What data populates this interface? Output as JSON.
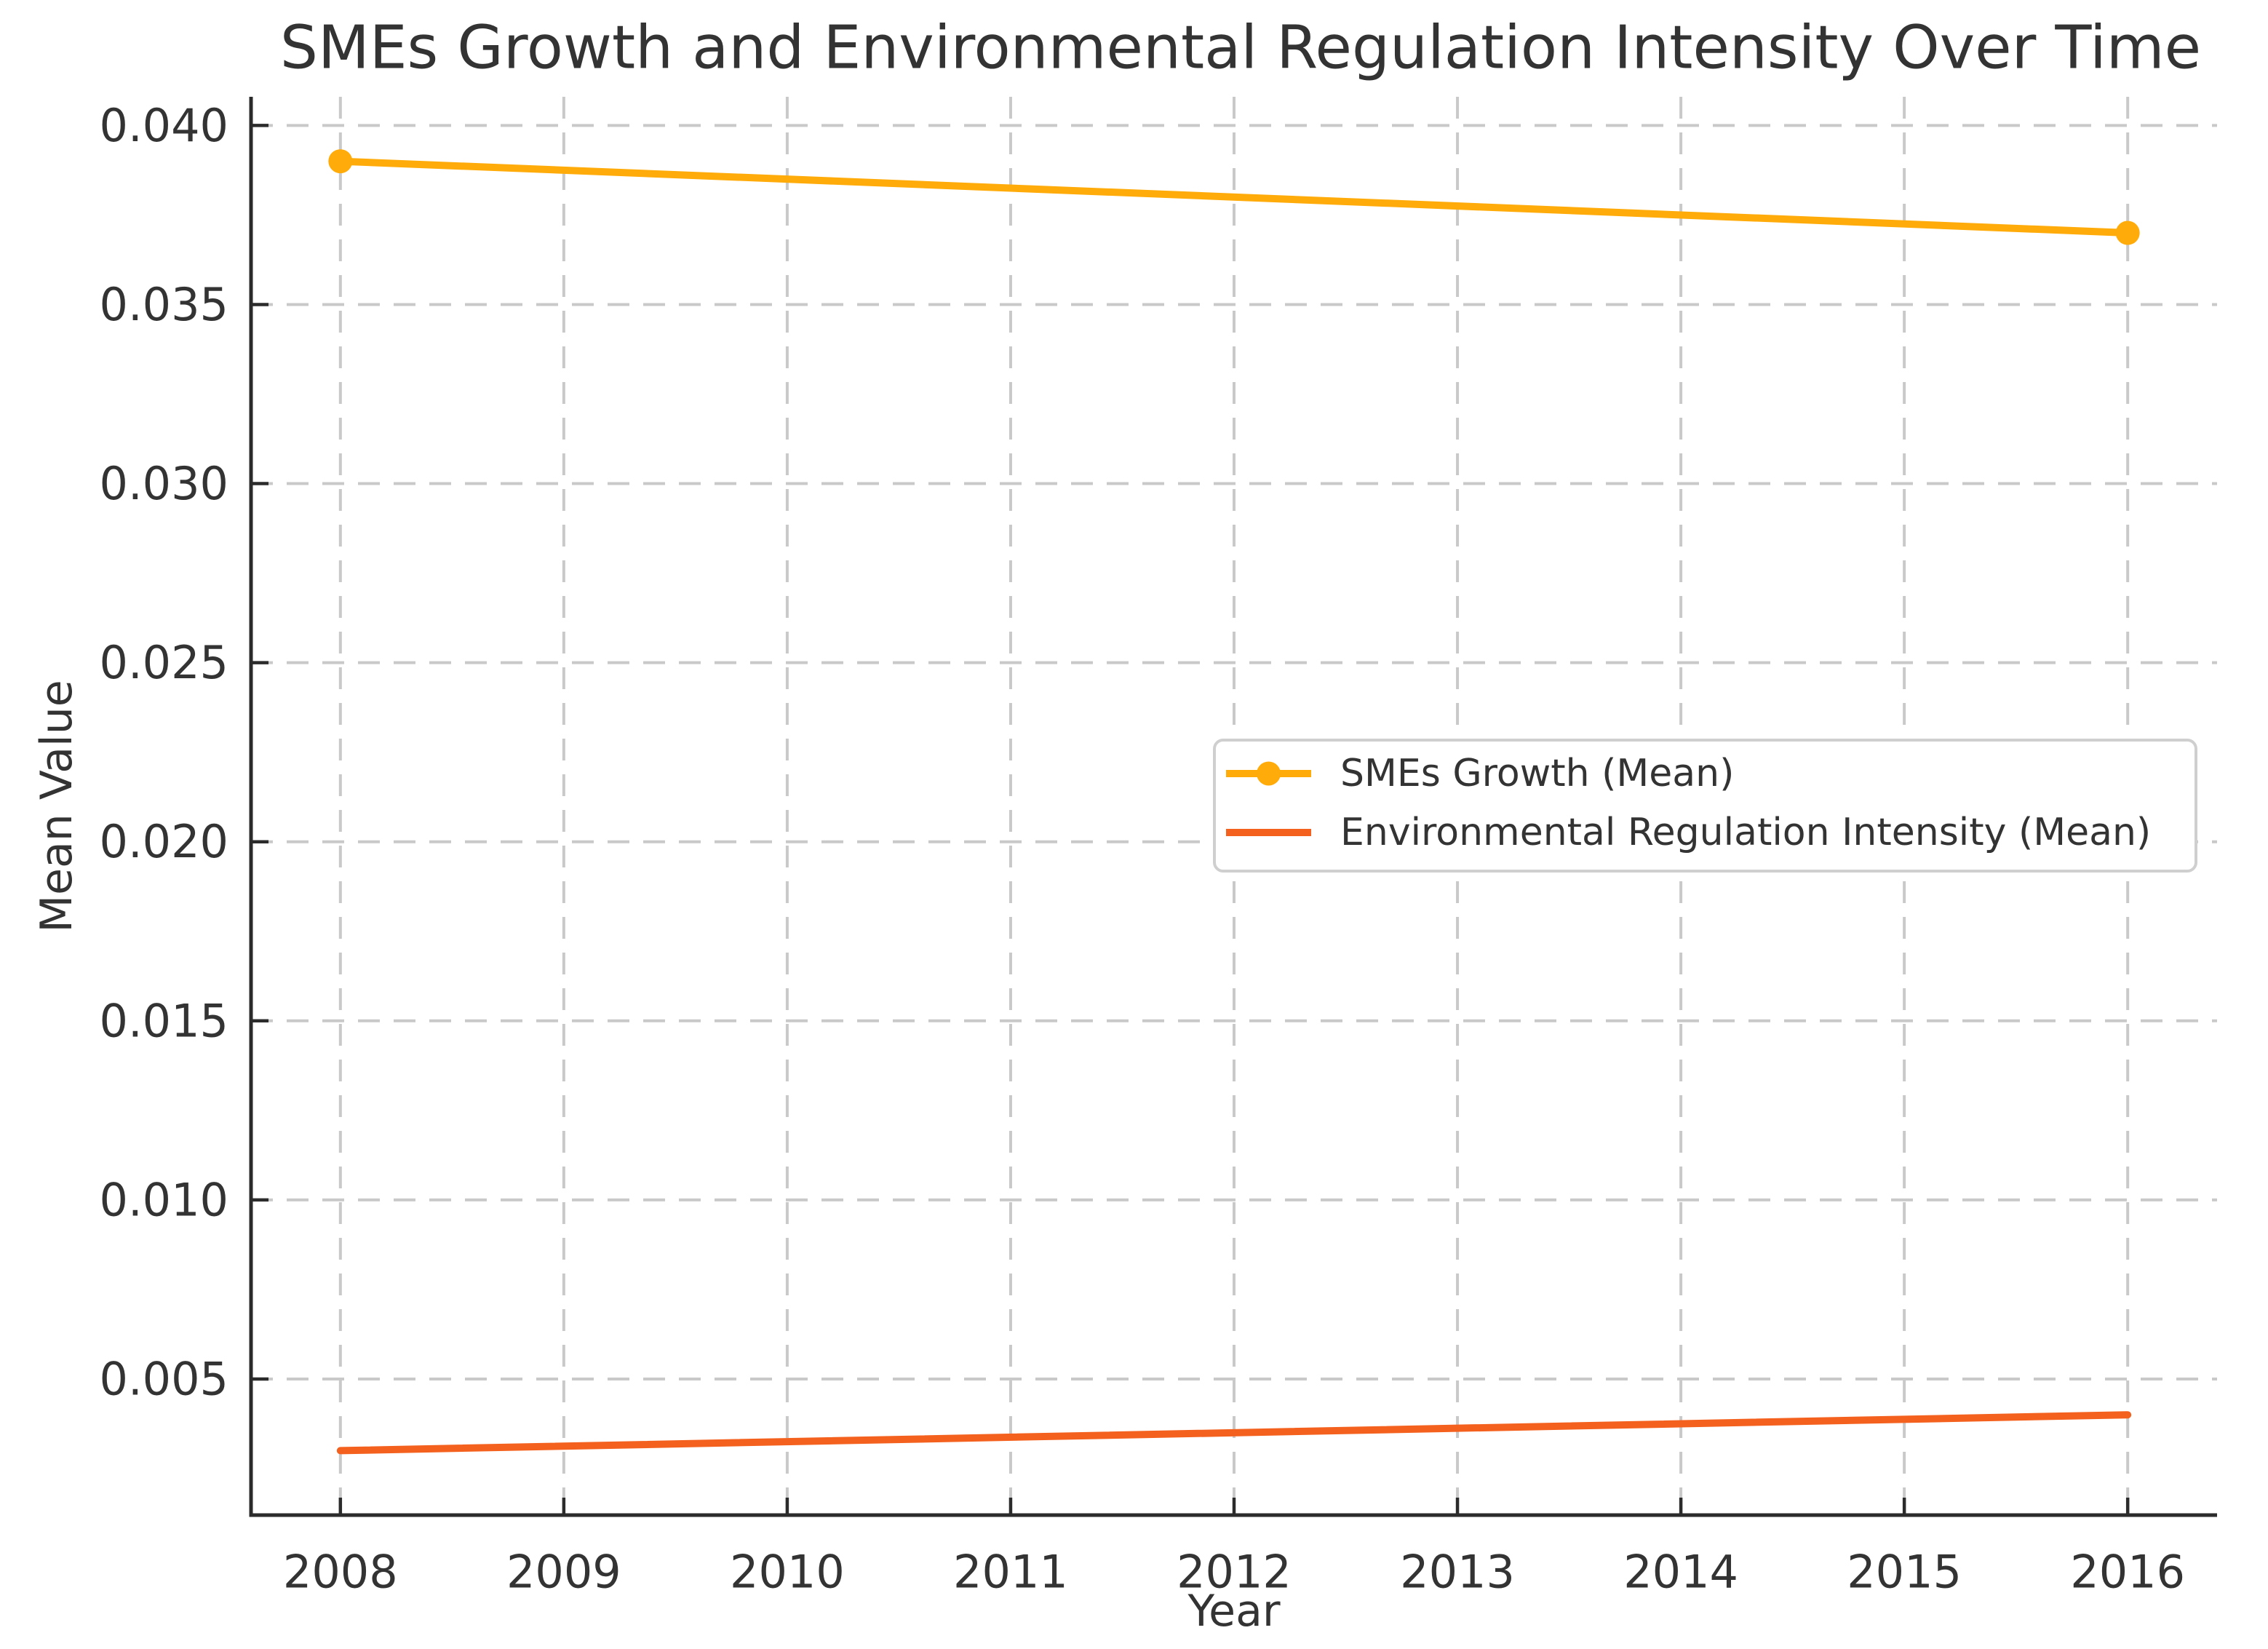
{
  "chart_data": {
    "type": "line",
    "title": "SMEs Growth and Environmental Regulation Intensity Over Time",
    "xlabel": "Year",
    "ylabel": "Mean Value",
    "x_ticks": [
      2008,
      2009,
      2010,
      2011,
      2012,
      2013,
      2014,
      2015,
      2016
    ],
    "x_tick_labels": [
      "2008",
      "2009",
      "2010",
      "2011",
      "2012",
      "2013",
      "2014",
      "2015",
      "2016"
    ],
    "y_ticks": [
      0.005,
      0.01,
      0.015,
      0.02,
      0.025,
      0.03,
      0.035,
      0.04
    ],
    "y_tick_labels": [
      "0.005",
      "0.010",
      "0.015",
      "0.020",
      "0.025",
      "0.030",
      "0.035",
      "0.040"
    ],
    "xlim": [
      2007.6,
      2016.4
    ],
    "ylim": [
      0.0012,
      0.0408
    ],
    "grid": true,
    "grid_linestyle": "dashed",
    "legend_position": "center-right-inside",
    "series": [
      {
        "name": "SMEs Growth (Mean)",
        "color": "#FFAB0A",
        "marker": "circle",
        "x": [
          2008,
          2016
        ],
        "values": [
          0.039,
          0.037
        ]
      },
      {
        "name": "Environmental Regulation Intensity (Mean)",
        "color": "#F4611E",
        "marker": "none",
        "x": [
          2008,
          2016
        ],
        "values": [
          0.003,
          0.004
        ]
      }
    ]
  },
  "style_colors": {
    "background": "#FFFFFF",
    "text": "#333333",
    "grid": "#C9C9C9",
    "spine": "#2B2B2B",
    "legend_border": "#CFCFCF",
    "legend_background": "#FFFFFF"
  }
}
